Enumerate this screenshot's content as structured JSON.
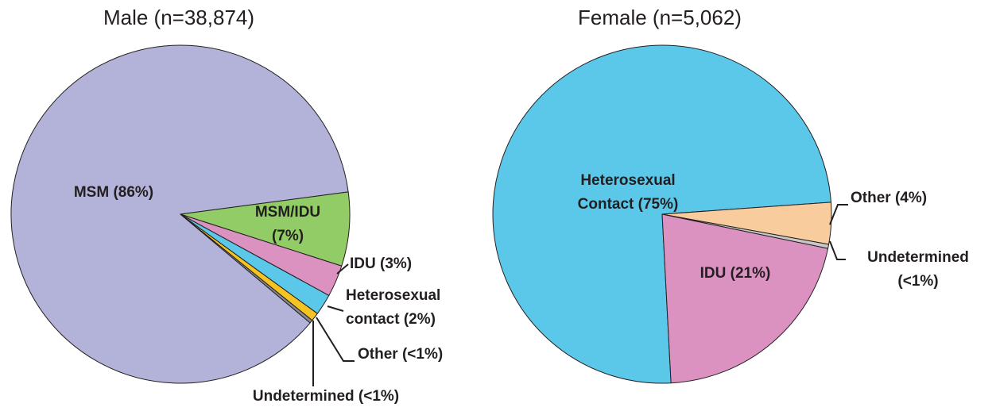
{
  "chart_data": [
    {
      "type": "pie",
      "title": "Male (n=38,874)",
      "labels": [
        [
          "MSM (86%)"
        ],
        [
          "MSM/IDU",
          "(7%)"
        ],
        [
          "IDU (3%)"
        ],
        [
          "Heterosexual",
          "contact  (2%)"
        ],
        [
          "Other (<1%)"
        ],
        [
          "Undetermined (<1%)"
        ]
      ],
      "values": [
        86,
        7,
        3,
        2,
        0.8,
        0.3
      ],
      "colors": [
        "#b3b3d9",
        "#92cc66",
        "#dc92c0",
        "#5bc8ea",
        "#f6c422",
        "#8a8a8a"
      ]
    },
    {
      "type": "pie",
      "title": "Female (n=5,062)",
      "labels": [
        [
          "Heterosexual",
          "Contact (75%)"
        ],
        [
          "Other (4%)"
        ],
        [
          "Undetermined",
          "(<1%)"
        ],
        [
          "IDU (21%)"
        ]
      ],
      "values": [
        75,
        4,
        0.4,
        21
      ],
      "colors": [
        "#5bc8ea",
        "#f8cc9d",
        "#c8c8c8",
        "#dc92c0"
      ]
    }
  ]
}
